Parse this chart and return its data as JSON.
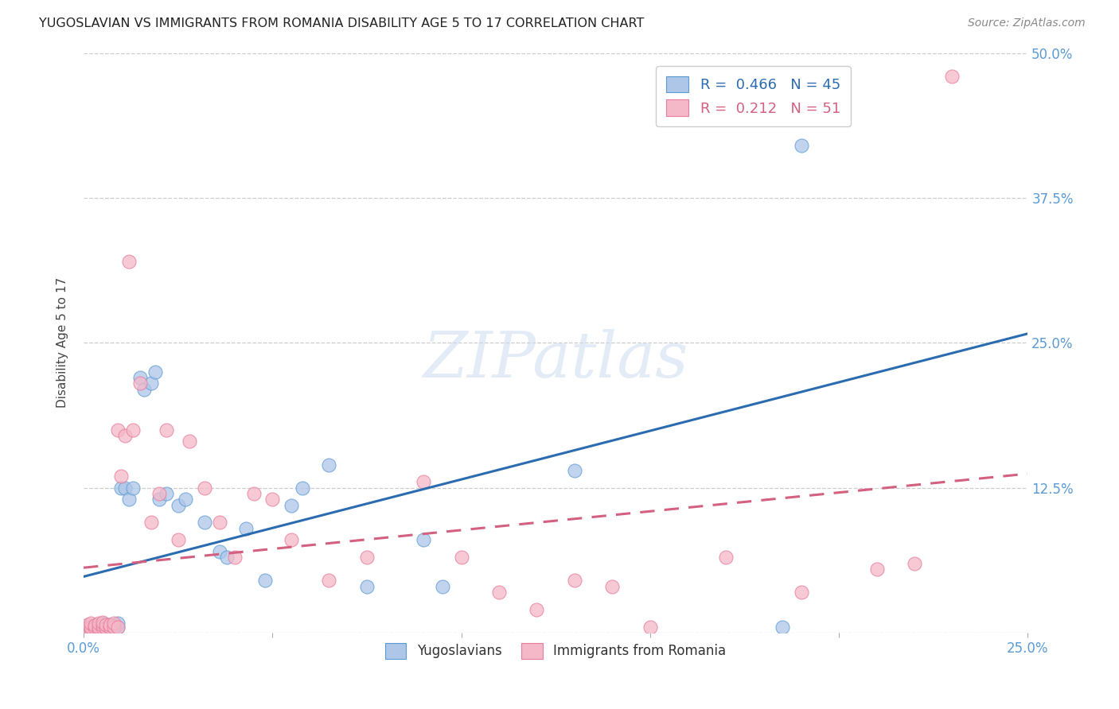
{
  "title": "YUGOSLAVIAN VS IMMIGRANTS FROM ROMANIA DISABILITY AGE 5 TO 17 CORRELATION CHART",
  "source": "Source: ZipAtlas.com",
  "ylabel": "Disability Age 5 to 17",
  "xlim": [
    0.0,
    0.25
  ],
  "ylim": [
    0.0,
    0.5
  ],
  "ytick_labels": [
    "",
    "12.5%",
    "25.0%",
    "37.5%",
    "50.0%"
  ],
  "ytick_positions": [
    0.0,
    0.125,
    0.25,
    0.375,
    0.5
  ],
  "grid_color": "#cccccc",
  "background_color": "#ffffff",
  "watermark_text": "ZIPatlas",
  "tick_color": "#5b9bd5",
  "yug_scatter_color": "#aec6e8",
  "yug_scatter_edge": "#5b9bd5",
  "rom_scatter_color": "#f4b8c8",
  "rom_scatter_edge": "#e87a9a",
  "yug_line_color": "#2b6cb0",
  "rom_line_color": "#d46080",
  "legend_yug_r": "0.466",
  "legend_yug_n": "45",
  "legend_rom_r": "0.212",
  "legend_rom_n": "51",
  "yug_x": [
    0.001,
    0.002,
    0.002,
    0.003,
    0.003,
    0.003,
    0.004,
    0.004,
    0.005,
    0.005,
    0.005,
    0.006,
    0.006,
    0.007,
    0.007,
    0.008,
    0.008,
    0.009,
    0.009,
    0.01,
    0.011,
    0.012,
    0.013,
    0.015,
    0.016,
    0.018,
    0.019,
    0.02,
    0.022,
    0.025,
    0.027,
    0.032,
    0.036,
    0.038,
    0.043,
    0.048,
    0.055,
    0.058,
    0.065,
    0.075,
    0.09,
    0.095,
    0.13,
    0.185,
    0.19
  ],
  "yug_y": [
    0.005,
    0.003,
    0.005,
    0.004,
    0.005,
    0.007,
    0.004,
    0.006,
    0.003,
    0.005,
    0.008,
    0.004,
    0.006,
    0.005,
    0.007,
    0.004,
    0.006,
    0.005,
    0.008,
    0.125,
    0.125,
    0.115,
    0.125,
    0.22,
    0.21,
    0.215,
    0.225,
    0.115,
    0.12,
    0.11,
    0.115,
    0.095,
    0.07,
    0.065,
    0.09,
    0.045,
    0.11,
    0.125,
    0.145,
    0.04,
    0.08,
    0.04,
    0.14,
    0.005,
    0.42
  ],
  "rom_x": [
    0.001,
    0.001,
    0.002,
    0.002,
    0.002,
    0.003,
    0.003,
    0.004,
    0.004,
    0.004,
    0.005,
    0.005,
    0.005,
    0.006,
    0.006,
    0.007,
    0.007,
    0.008,
    0.008,
    0.009,
    0.009,
    0.01,
    0.011,
    0.012,
    0.013,
    0.015,
    0.018,
    0.02,
    0.022,
    0.025,
    0.028,
    0.032,
    0.036,
    0.04,
    0.045,
    0.05,
    0.055,
    0.065,
    0.075,
    0.09,
    0.1,
    0.11,
    0.12,
    0.13,
    0.14,
    0.15,
    0.17,
    0.19,
    0.21,
    0.22,
    0.23
  ],
  "rom_y": [
    0.004,
    0.007,
    0.003,
    0.005,
    0.008,
    0.004,
    0.006,
    0.003,
    0.005,
    0.008,
    0.004,
    0.006,
    0.009,
    0.004,
    0.007,
    0.005,
    0.007,
    0.005,
    0.008,
    0.005,
    0.175,
    0.135,
    0.17,
    0.32,
    0.175,
    0.215,
    0.095,
    0.12,
    0.175,
    0.08,
    0.165,
    0.125,
    0.095,
    0.065,
    0.12,
    0.115,
    0.08,
    0.045,
    0.065,
    0.13,
    0.065,
    0.035,
    0.02,
    0.045,
    0.04,
    0.005,
    0.065,
    0.035,
    0.055,
    0.06,
    0.48
  ]
}
